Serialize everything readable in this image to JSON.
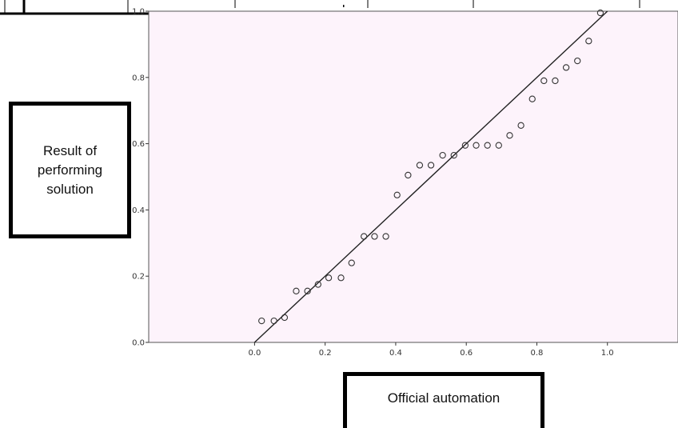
{
  "chart_data": {
    "type": "scatter",
    "title": "",
    "xlabel": "Official automation",
    "ylabel": "Result of performing solution",
    "xlim": [
      -0.3,
      1.2
    ],
    "ylim": [
      0.0,
      1.0
    ],
    "x_ticks": [
      "0.0",
      "0.2",
      "0.4",
      "0.6",
      "0.8",
      "1.0"
    ],
    "y_ticks": [
      "0.0",
      "0.2",
      "0.4",
      "0.6",
      "0.8",
      "1.0"
    ],
    "grid": false,
    "background_color": "#fdf3fb",
    "marker_color": "#333333",
    "series": [
      {
        "x": [
          0.02,
          0.055,
          0.085,
          0.118,
          0.15,
          0.18,
          0.21,
          0.245,
          0.275,
          0.31,
          0.34,
          0.372,
          0.404,
          0.435,
          0.468,
          0.5,
          0.533,
          0.565,
          0.597,
          0.628,
          0.66,
          0.692,
          0.723,
          0.755,
          0.787,
          0.82,
          0.852,
          0.883,
          0.915,
          0.947,
          0.98
        ],
        "y": [
          0.065,
          0.065,
          0.075,
          0.155,
          0.155,
          0.175,
          0.195,
          0.195,
          0.24,
          0.32,
          0.32,
          0.32,
          0.445,
          0.505,
          0.535,
          0.535,
          0.565,
          0.565,
          0.595,
          0.595,
          0.595,
          0.595,
          0.625,
          0.655,
          0.735,
          0.79,
          0.79,
          0.83,
          0.85,
          0.91,
          0.995
        ]
      }
    ],
    "reference_line": {
      "x": [
        0.0,
        1.0
      ],
      "y": [
        0.0,
        1.0
      ]
    }
  }
}
